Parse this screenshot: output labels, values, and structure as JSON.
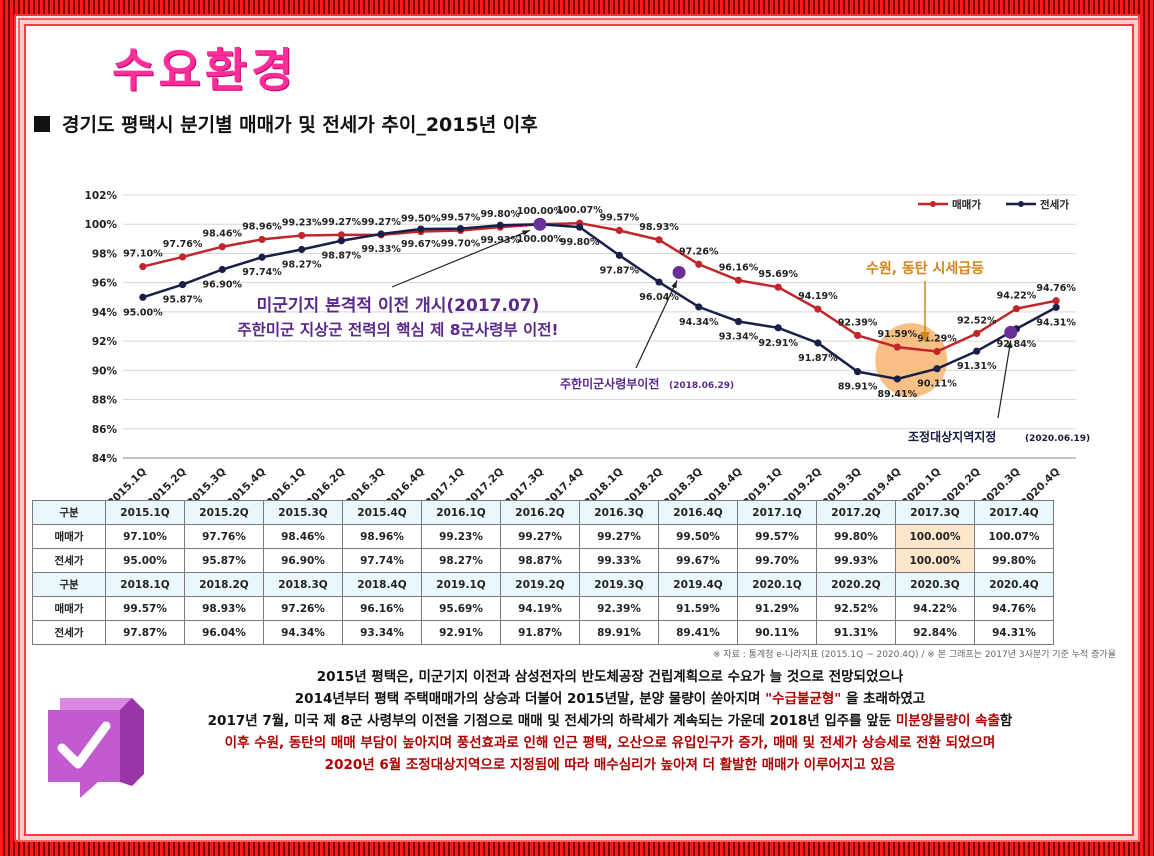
{
  "header": {
    "title": "수요환경",
    "subtitle": "경기도 평택시 분기별 매매가 및 전세가 추이_2015년 이후"
  },
  "chart_data": {
    "type": "line",
    "categories": [
      "2015.1Q",
      "2015.2Q",
      "2015.3Q",
      "2015.4Q",
      "2016.1Q",
      "2016.2Q",
      "2016.3Q",
      "2016.4Q",
      "2017.1Q",
      "2017.2Q",
      "2017.3Q",
      "2017.4Q",
      "2018.1Q",
      "2018.2Q",
      "2018.3Q",
      "2018.4Q",
      "2019.1Q",
      "2019.2Q",
      "2019.3Q",
      "2019.4Q",
      "2020.1Q",
      "2020.2Q",
      "2020.3Q",
      "2020.4Q"
    ],
    "series": [
      {
        "name": "매매가",
        "color": "#c0262a",
        "values": [
          97.1,
          97.76,
          98.46,
          98.96,
          99.23,
          99.27,
          99.27,
          99.5,
          99.57,
          99.8,
          100.0,
          100.07,
          99.57,
          98.93,
          97.26,
          96.16,
          95.69,
          94.19,
          92.39,
          91.59,
          91.29,
          92.52,
          94.22,
          94.76
        ],
        "labels": [
          "97.10%",
          "97.76%",
          "98.46%",
          "98.96%",
          "99.23%",
          "99.27%",
          "99.27%",
          "99.50%",
          "99.57%",
          "99.80%",
          "100.00%",
          "100.07%",
          "99.57%",
          "98.93%",
          "97.26%",
          "96.16%",
          "95.69%",
          "94.19%",
          "92.39%",
          "91.59%",
          "91.29%",
          "92.52%",
          "94.22%",
          "94.76%"
        ]
      },
      {
        "name": "전세가",
        "color": "#1a1f4a",
        "values": [
          95.0,
          95.87,
          96.9,
          97.74,
          98.27,
          98.87,
          99.33,
          99.67,
          99.7,
          99.93,
          100.0,
          99.8,
          97.87,
          96.04,
          94.34,
          93.34,
          92.91,
          91.87,
          89.91,
          89.41,
          90.11,
          91.31,
          92.84,
          94.31
        ],
        "labels": [
          "95.00%",
          "95.87%",
          "96.90%",
          "97.74%",
          "98.27%",
          "98.87%",
          "99.33%",
          "99.67%",
          "99.70%",
          "99.93%",
          "100.00%",
          "99.80%",
          "97.87%",
          "96.04%",
          "94.34%",
          "93.34%",
          "92.91%",
          "91.87%",
          "89.91%",
          "89.41%",
          "90.11%",
          "91.31%",
          "92.84%",
          "94.31%"
        ]
      }
    ],
    "yticks": [
      "84%",
      "86%",
      "88%",
      "90%",
      "92%",
      "94%",
      "96%",
      "98%",
      "100%",
      "102%"
    ],
    "ylim": [
      84,
      102
    ],
    "grid": true,
    "legend": "top-right",
    "annotations": {
      "main1": "미군기지 본격적 이전 개시(2017.07)",
      "main2": "주한미군 지상군 전력의 핵심 제 8군사령부 이전!",
      "hq_name": "주한미군사령부이전",
      "hq_date": "(2018.06.29)",
      "surge": "수원, 동탄 시세급등",
      "reg_name": "조정대상지역지정",
      "reg_date": "(2020.06.19)"
    }
  },
  "table": {
    "rows": [
      [
        "구분",
        "2015.1Q",
        "2015.2Q",
        "2015.3Q",
        "2015.4Q",
        "2016.1Q",
        "2016.2Q",
        "2016.3Q",
        "2016.4Q",
        "2017.1Q",
        "2017.2Q",
        "2017.3Q",
        "2017.4Q"
      ],
      [
        "매매가",
        "97.10%",
        "97.76%",
        "98.46%",
        "98.96%",
        "99.23%",
        "99.27%",
        "99.27%",
        "99.50%",
        "99.57%",
        "99.80%",
        "100.00%",
        "100.07%"
      ],
      [
        "전세가",
        "95.00%",
        "95.87%",
        "96.90%",
        "97.74%",
        "98.27%",
        "98.87%",
        "99.33%",
        "99.67%",
        "99.70%",
        "99.93%",
        "100.00%",
        "99.80%"
      ],
      [
        "구분",
        "2018.1Q",
        "2018.2Q",
        "2018.3Q",
        "2018.4Q",
        "2019.1Q",
        "2019.2Q",
        "2019.3Q",
        "2019.4Q",
        "2020.1Q",
        "2020.2Q",
        "2020.3Q",
        "2020.4Q"
      ],
      [
        "매매가",
        "99.57%",
        "98.93%",
        "97.26%",
        "96.16%",
        "95.69%",
        "94.19%",
        "92.39%",
        "91.59%",
        "91.29%",
        "92.52%",
        "94.22%",
        "94.76%"
      ],
      [
        "전세가",
        "97.87%",
        "96.04%",
        "94.34%",
        "93.34%",
        "92.91%",
        "91.87%",
        "89.91%",
        "89.41%",
        "90.11%",
        "91.31%",
        "92.84%",
        "94.31%"
      ]
    ],
    "note": "※ 자료 : 통계청 e-나라지표 (2015.1Q ~ 2020.4Q) / ※ 본 그래프는 2017년 3사분기 기준 누적 증가율"
  },
  "description": {
    "line1": "2015년 평택은, 미군기지 이전과 삼성전자의 반도체공장 건립계획으로 수요가 늘 것으로 전망되었으나",
    "line2a": "2014년부터 평택 주택매매가의 상승과 더불어 2015년말, 분양 물량이 쏟아지며 ",
    "line2b": "\"수급불균형\"",
    "line2c": " 을 초래하였고",
    "line3a": "2017년 7월, 미국 제 8군 사령부의 이전을 기점으로 매매 및 전세가의 하락세가 계속되는 가운데 2018년 입주를 앞둔 ",
    "line3b": "미분양물량이 속출",
    "line3c": "함",
    "line4": "이후 수원, 동탄의 매매 부담이 높아지며 풍선효과로 인해 인근 평택, 오산으로 유입인구가 증가, 매매 및 전세가 상승세로 전환 되었으며",
    "line5": "2020년 6월 조정대상지역으로 지정됨에 따라 매수심리가 높아져 더 활발한 매매가 이루어지고 있음"
  }
}
